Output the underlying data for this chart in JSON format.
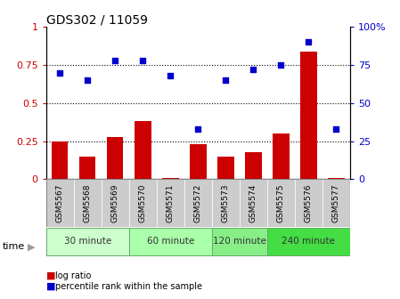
{
  "title": "GDS302 / 11059",
  "samples": [
    "GSM5567",
    "GSM5568",
    "GSM5569",
    "GSM5570",
    "GSM5571",
    "GSM5572",
    "GSM5573",
    "GSM5574",
    "GSM5575",
    "GSM5576",
    "GSM5577"
  ],
  "log_ratio": [
    0.25,
    0.15,
    0.28,
    0.38,
    0.01,
    0.23,
    0.15,
    0.18,
    0.3,
    0.84,
    0.01
  ],
  "percentile": [
    0.7,
    0.65,
    0.78,
    0.78,
    0.68,
    0.33,
    0.65,
    0.72,
    0.75,
    0.9,
    0.33
  ],
  "bar_color": "#cc0000",
  "dot_color": "#0000cc",
  "yticks_left": [
    0,
    0.25,
    0.5,
    0.75,
    1.0
  ],
  "ytick_left_labels": [
    "0",
    "0.25",
    "0.5",
    "0.75",
    "1"
  ],
  "yticks_right": [
    0,
    25,
    50,
    75,
    100
  ],
  "ytick_right_labels": [
    "0",
    "25",
    "50",
    "75",
    "100%"
  ],
  "ylim_left": [
    0,
    1.0
  ],
  "ylim_right": [
    0,
    100
  ],
  "groups": [
    {
      "label": "30 minute",
      "start": 0,
      "end": 3,
      "color": "#ccffcc"
    },
    {
      "label": "60 minute",
      "start": 3,
      "end": 6,
      "color": "#aaffaa"
    },
    {
      "label": "120 minute",
      "start": 6,
      "end": 8,
      "color": "#88ee88"
    },
    {
      "label": "240 minute",
      "start": 8,
      "end": 11,
      "color": "#44dd44"
    }
  ],
  "group_border_color": "#66aa66",
  "sample_box_color": "#cccccc",
  "legend_bar_label": "log ratio",
  "legend_dot_label": "percentile rank within the sample",
  "time_label": "time",
  "bg_color": "#ffffff",
  "plot_bg_color": "#ffffff",
  "grid_color": "#000000",
  "title_fontsize": 10,
  "axis_fontsize": 8,
  "label_fontsize": 7.5,
  "tick_fontsize": 8
}
